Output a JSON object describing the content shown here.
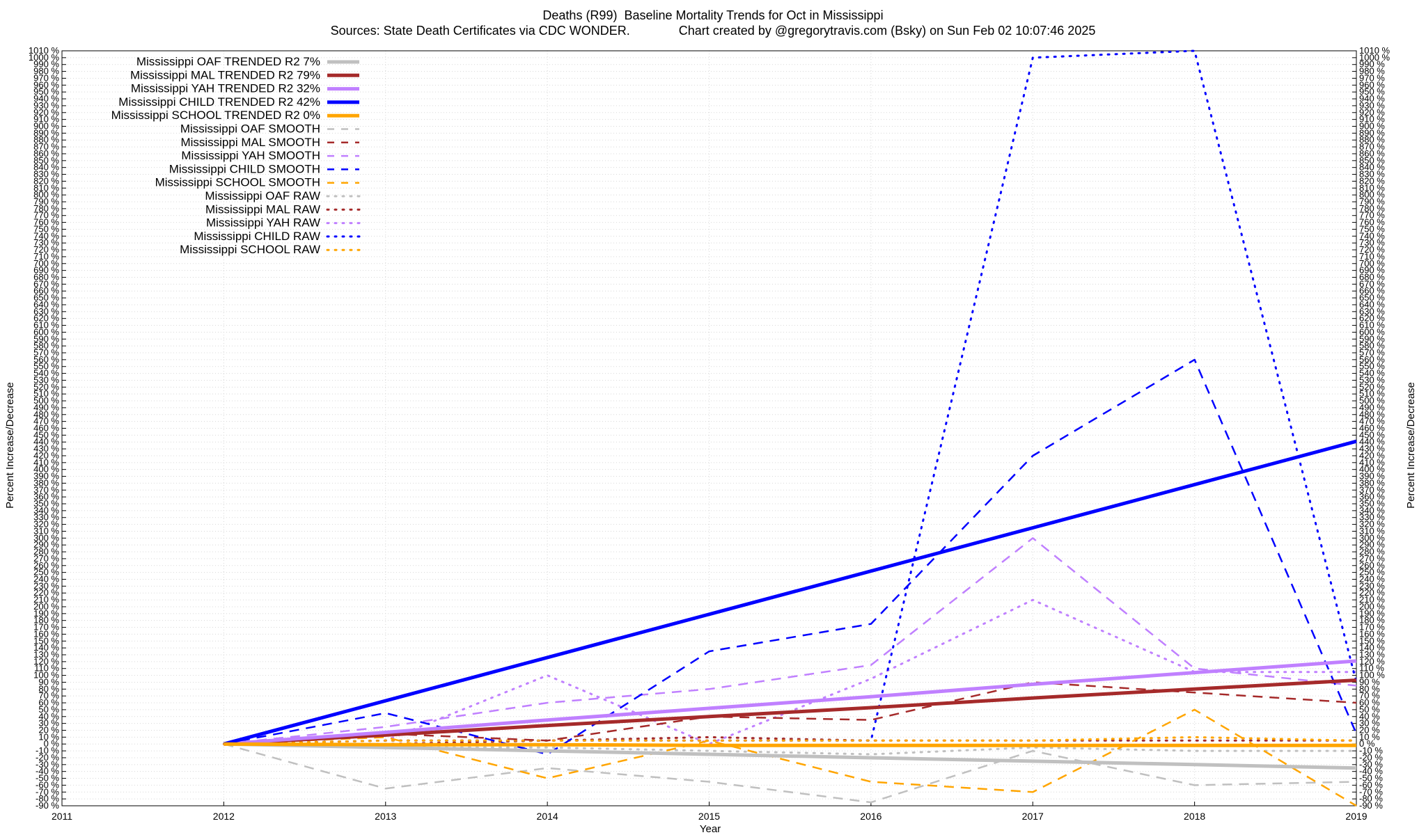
{
  "chart_data": {
    "type": "line",
    "title": "Deaths (R99)  Baseline Mortality Trends for Oct in Mississippi",
    "subtitle": "Sources: State Death Certificates via CDC WONDER.              Chart created by @gregorytravis.com (Bsky) on Sun Feb 02 10:07:46 2025",
    "xlabel": "Year",
    "ylabel": "Percent Increase/Decrease",
    "xlim": [
      2011,
      2019
    ],
    "ylim": [
      -90,
      1010
    ],
    "x_ticks": [
      2011,
      2012,
      2013,
      2014,
      2015,
      2016,
      2017,
      2018,
      2019
    ],
    "y_tick_step": 10,
    "y_tick_suffix": " %",
    "grid": true,
    "legend_position": "top-left",
    "x": [
      2012,
      2013,
      2014,
      2015,
      2016,
      2017,
      2018,
      2019
    ],
    "series": [
      {
        "name": "Mississippi OAF TRENDED R2  7%",
        "color": "#c0c0c0",
        "style": "trend",
        "values": [
          0,
          -5,
          -10,
          -15,
          -20,
          -25,
          -30,
          -35
        ]
      },
      {
        "name": "Mississippi MAL TRENDED R2  79%",
        "color": "#a52a2a",
        "style": "trend",
        "values": [
          0,
          13,
          27,
          40,
          53,
          67,
          80,
          93
        ]
      },
      {
        "name": "Mississippi YAH TRENDED R2  32%",
        "color": "#c080ff",
        "style": "trend",
        "values": [
          0,
          17,
          35,
          52,
          69,
          87,
          104,
          121
        ]
      },
      {
        "name": "Mississippi CHILD TRENDED R2  42%",
        "color": "#0000ff",
        "style": "trend",
        "values": [
          0,
          63,
          126,
          189,
          252,
          315,
          378,
          441
        ]
      },
      {
        "name": "Mississippi SCHOOL TRENDED R2  0%",
        "color": "#ffa500",
        "style": "trend",
        "values": [
          0,
          -1,
          -1,
          -2,
          -2,
          -2,
          -2,
          -2
        ]
      },
      {
        "name": "Mississippi OAF SMOOTH",
        "color": "#c0c0c0",
        "style": "smooth",
        "values": [
          0,
          -65,
          -35,
          -55,
          -85,
          -10,
          -60,
          -55
        ]
      },
      {
        "name": "Mississippi MAL SMOOTH",
        "color": "#a52a2a",
        "style": "smooth",
        "values": [
          0,
          15,
          5,
          40,
          35,
          90,
          75,
          60
        ]
      },
      {
        "name": "Mississippi YAH SMOOTH",
        "color": "#c080ff",
        "style": "smooth",
        "values": [
          0,
          25,
          60,
          80,
          115,
          300,
          110,
          85
        ]
      },
      {
        "name": "Mississippi CHILD SMOOTH",
        "color": "#0000ff",
        "style": "smooth",
        "values": [
          0,
          45,
          -15,
          135,
          175,
          420,
          560,
          15
        ]
      },
      {
        "name": "Mississippi SCHOOL SMOOTH",
        "color": "#ffa500",
        "style": "smooth",
        "values": [
          0,
          10,
          -50,
          5,
          -55,
          -70,
          50,
          -90
        ]
      },
      {
        "name": "Mississippi OAF RAW",
        "color": "#c0c0c0",
        "style": "raw",
        "values": [
          0,
          -5,
          -5,
          -10,
          -15,
          -5,
          -10,
          -10
        ]
      },
      {
        "name": "Mississippi MAL RAW",
        "color": "#a52a2a",
        "style": "raw",
        "values": [
          0,
          0,
          5,
          10,
          5,
          5,
          5,
          5
        ]
      },
      {
        "name": "Mississippi YAH RAW",
        "color": "#c080ff",
        "style": "raw",
        "values": [
          0,
          5,
          100,
          0,
          95,
          210,
          105,
          105
        ]
      },
      {
        "name": "Mississippi CHILD RAW",
        "color": "#0000ff",
        "style": "raw",
        "values": [
          0,
          5,
          5,
          5,
          5,
          1000,
          1010,
          90
        ]
      },
      {
        "name": "Mississippi SCHOOL RAW",
        "color": "#ffa500",
        "style": "raw",
        "values": [
          0,
          5,
          5,
          5,
          5,
          5,
          10,
          5
        ]
      }
    ]
  }
}
